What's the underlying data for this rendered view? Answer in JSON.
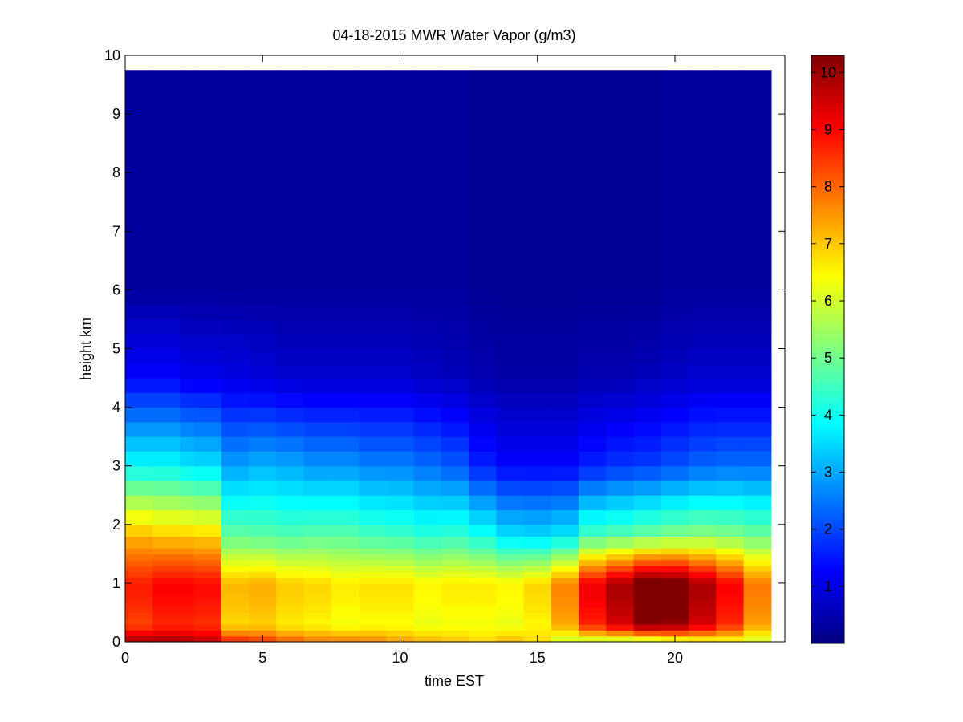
{
  "chart_data": {
    "type": "heatmap",
    "title": "04-18-2015 MWR Water Vapor (g/m3)",
    "xlabel": "time EST",
    "ylabel": "height km",
    "xlim": [
      0,
      24
    ],
    "ylim": [
      0,
      10
    ],
    "x_ticks": [
      0,
      5,
      10,
      15,
      20
    ],
    "y_ticks": [
      0,
      1,
      2,
      3,
      4,
      5,
      6,
      7,
      8,
      9,
      10
    ],
    "colorbar": {
      "colormap": "jet",
      "clim": [
        0,
        10.3
      ],
      "ticks": [
        1,
        2,
        3,
        4,
        5,
        6,
        7,
        8,
        9,
        10
      ]
    },
    "grid": false,
    "x_edges": [
      0,
      1,
      2,
      2.5,
      3.5,
      4.5,
      5.5,
      6.5,
      7.5,
      8.5,
      9.5,
      10.5,
      11.5,
      12.5,
      13.5,
      14.5,
      15.5,
      16.5,
      17.5,
      18.5,
      19.5,
      20.5,
      21.5,
      22.5,
      23.5
    ],
    "height_profile_km": [
      0,
      0.1,
      0.2,
      0.3,
      0.4,
      0.5,
      0.6,
      0.7,
      0.8,
      0.9,
      1.0,
      1.1,
      1.2,
      1.3,
      1.4,
      1.5,
      1.6,
      1.8,
      2.0,
      2.25,
      2.5,
      2.75,
      3.0,
      3.25,
      3.5,
      3.75,
      4.0,
      4.25,
      4.5,
      4.75,
      5.0,
      5.25,
      5.5,
      5.75,
      6.0,
      6.5,
      7.0,
      7.5,
      8.0,
      8.5,
      9.0,
      9.5,
      9.75
    ],
    "columns": [
      {
        "surface": 10.2,
        "h1": 8.3,
        "h2": 7.2,
        "h3": 3.9,
        "h4": 1.3,
        "h5": 0.3
      },
      {
        "surface": 10.2,
        "h1": 8.6,
        "h2": 7.0,
        "h3": 3.9,
        "h4": 1.3,
        "h5": 0.3
      },
      {
        "surface": 10.1,
        "h1": 8.6,
        "h2": 7.0,
        "h3": 3.7,
        "h4": 1.1,
        "h5": 0.3
      },
      {
        "surface": 9.8,
        "h1": 8.5,
        "h2": 6.9,
        "h3": 3.6,
        "h4": 1.1,
        "h5": 0.3
      },
      {
        "surface": 9.0,
        "h1": 6.8,
        "h2": 4.9,
        "h3": 2.9,
        "h4": 1.0,
        "h5": 0.3
      },
      {
        "surface": 8.7,
        "h1": 6.9,
        "h2": 4.8,
        "h3": 3.1,
        "h4": 0.9,
        "h5": 0.3
      },
      {
        "surface": 8.3,
        "h1": 6.6,
        "h2": 4.7,
        "h3": 3.0,
        "h4": 0.8,
        "h5": 0.3
      },
      {
        "surface": 8.0,
        "h1": 6.5,
        "h2": 4.8,
        "h3": 2.8,
        "h4": 0.8,
        "h5": 0.3
      },
      {
        "surface": 8.0,
        "h1": 6.3,
        "h2": 4.8,
        "h3": 2.8,
        "h4": 0.8,
        "h5": 0.3
      },
      {
        "surface": 7.9,
        "h1": 6.4,
        "h2": 4.6,
        "h3": 2.6,
        "h4": 0.8,
        "h5": 0.3
      },
      {
        "surface": 7.6,
        "h1": 6.4,
        "h2": 4.5,
        "h3": 2.6,
        "h4": 0.8,
        "h5": 0.3
      },
      {
        "surface": 7.4,
        "h1": 6.2,
        "h2": 4.3,
        "h3": 2.4,
        "h4": 0.7,
        "h5": 0.3
      },
      {
        "surface": 7.2,
        "h1": 6.3,
        "h2": 4.4,
        "h3": 2.2,
        "h4": 0.6,
        "h5": 0.3
      },
      {
        "surface": 7.0,
        "h1": 6.3,
        "h2": 4.1,
        "h3": 1.6,
        "h4": 0.5,
        "h5": 0.2
      },
      {
        "surface": 7.3,
        "h1": 6.2,
        "h2": 3.6,
        "h3": 1.3,
        "h4": 0.4,
        "h5": 0.2
      },
      {
        "surface": 6.9,
        "h1": 6.5,
        "h2": 3.5,
        "h3": 1.3,
        "h4": 0.4,
        "h5": 0.2
      },
      {
        "surface": 5.6,
        "h1": 7.3,
        "h2": 3.7,
        "h3": 1.3,
        "h4": 0.4,
        "h5": 0.2
      },
      {
        "surface": 5.2,
        "h1": 8.7,
        "h2": 4.6,
        "h3": 1.6,
        "h4": 0.5,
        "h5": 0.2
      },
      {
        "surface": 5.0,
        "h1": 9.4,
        "h2": 4.8,
        "h3": 1.8,
        "h4": 0.5,
        "h5": 0.2
      },
      {
        "surface": 5.0,
        "h1": 10.2,
        "h2": 5.0,
        "h3": 1.9,
        "h4": 0.6,
        "h5": 0.2
      },
      {
        "surface": 5.4,
        "h1": 10.1,
        "h2": 5.2,
        "h3": 2.1,
        "h4": 0.7,
        "h5": 0.3
      },
      {
        "surface": 5.8,
        "h1": 9.4,
        "h2": 5.3,
        "h3": 2.3,
        "h4": 0.8,
        "h5": 0.3
      },
      {
        "surface": 6.0,
        "h1": 8.6,
        "h2": 5.2,
        "h3": 2.4,
        "h4": 0.8,
        "h5": 0.3
      },
      {
        "surface": 5.7,
        "h1": 7.4,
        "h2": 5.0,
        "h3": 2.4,
        "h4": 0.8,
        "h5": 0.3
      }
    ]
  }
}
